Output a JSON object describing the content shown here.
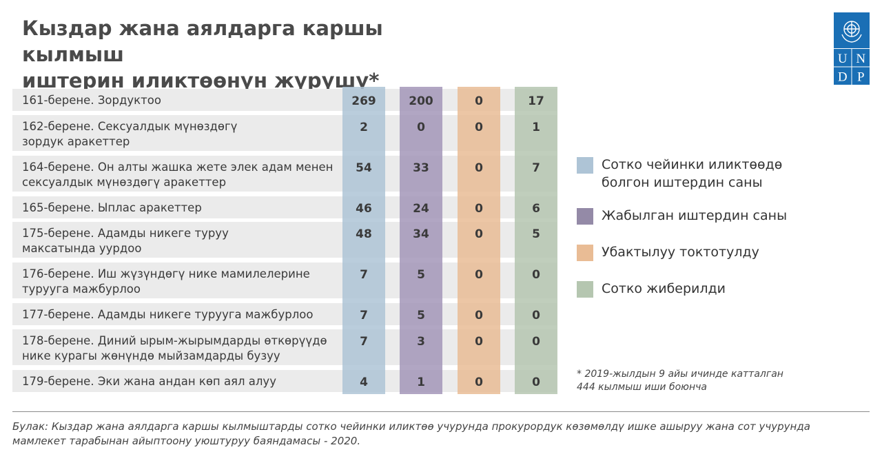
{
  "title": {
    "line1": "Кыздар жана аялдарга каршы кылмыш",
    "line2": "иштерин иликтөөнүн жүрүшү*"
  },
  "logo": {
    "letters": [
      "U",
      "N",
      "D",
      "P"
    ],
    "color": "#1a6fb5"
  },
  "chart_data": {
    "type": "table",
    "categories": [
      "161-берене. Зордуктоо",
      "162-берене. Сексуалдык мүнөздөгү зордук аракеттер",
      "164-берене. Он алты жашка жете элек адам менен сексуалдык мүнөздөгү аракеттер",
      "165-берене. Ыплас аракеттер",
      "175-берене. Адамды никеге туруу максатында уурдоо",
      "176-берене. Иш жүзүндөгү нике мамилелерине турууга мажбурлоо",
      "177-берене. Адамды никеге турууга мажбурлоо",
      "178-берене. Диний ырым-жырымдарды өткөрүүдө нике курагы жөнүндө мыйзамдарды бузуу",
      "179-берене. Эки жана андан көп аял алуу"
    ],
    "category_lines": [
      [
        "161-берене. Зордуктоо"
      ],
      [
        "162-берене. Сексуалдык мүнөздөгү",
        "зордук аракеттер"
      ],
      [
        "164-берене. Он алты жашка жете элек адам менен",
        "сексуалдык мүнөздөгү аракеттер"
      ],
      [
        "165-берене. Ыплас аракеттер"
      ],
      [
        "175-берене. Адамды никеге туруу",
        "максатында уурдоо"
      ],
      [
        "176-берене. Иш жүзүндөгү нике мамилелерине",
        "турууга мажбурлоо"
      ],
      [
        "177-берене. Адамды никеге турууга мажбурлоо"
      ],
      [
        "178-берене. Диний ырым-жырымдарды өткөрүүдө",
        "нике курагы жөнүндө мыйзамдарды бузуу"
      ],
      [
        "179-берене. Эки жана андан көп аял алуу"
      ]
    ],
    "series": [
      {
        "name": "Сотко чейинки иликтөөдө болгон иштердин саны",
        "color": "#aec4d6",
        "values": [
          269,
          2,
          54,
          46,
          48,
          7,
          7,
          7,
          4
        ]
      },
      {
        "name": "Жабылган иштердин саны",
        "color": "#a396b8",
        "values": [
          200,
          0,
          33,
          24,
          34,
          5,
          5,
          3,
          1
        ]
      },
      {
        "name": "Убактылуу токтотулду",
        "color": "#e9bc95",
        "values": [
          0,
          0,
          0,
          0,
          0,
          0,
          0,
          0,
          0
        ]
      },
      {
        "name": "Сотко жиберилди",
        "color": "#b5c6b0",
        "values": [
          17,
          1,
          7,
          6,
          5,
          0,
          0,
          0,
          0
        ]
      }
    ],
    "row_color": "#ebebeb",
    "legend_position": "right"
  },
  "legend": {
    "items": [
      {
        "lines": [
          "Сотко чейинки иликтөөдө",
          "болгон иштердин саны"
        ],
        "color": "#aec4d6"
      },
      {
        "lines": [
          "Жабылган иштердин саны"
        ],
        "color": "#948aa7"
      },
      {
        "lines": [
          "Убактылуу токтотулду"
        ],
        "color": "#e9bc95"
      },
      {
        "lines": [
          "Сотко жиберилди"
        ],
        "color": "#b5c6b0"
      }
    ]
  },
  "note": {
    "line1": "* 2019-жылдын 9 айы ичинде катталган",
    "line2": "444 кылмыш иши боюнча"
  },
  "source": {
    "line1": "Булак: Кыздар жана аялдарга каршы кылмыштарды сотко чейинки иликтөө учурунда прокурордук көзөмөлдү ишке ашыруу жана сот учурунда",
    "line2": "мамлекет тарабынан айыптоону  уюштуруу баяндамасы - 2020."
  }
}
